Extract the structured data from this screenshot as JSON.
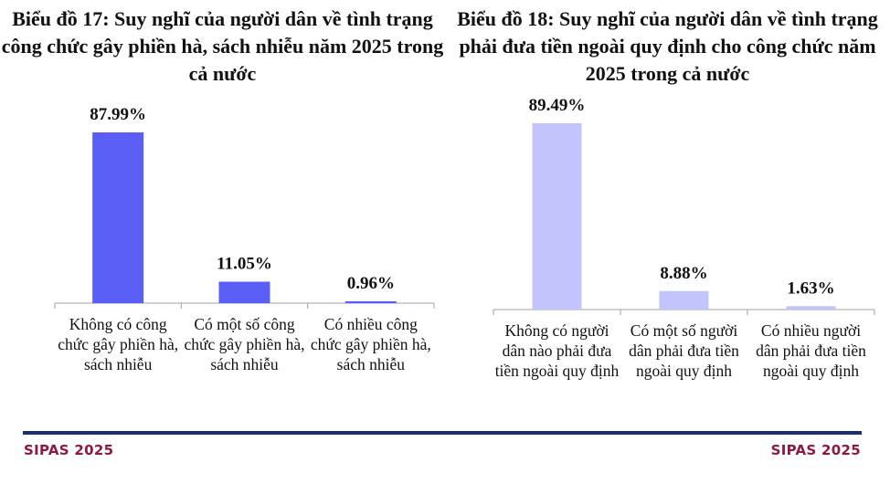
{
  "chart_data": [
    {
      "type": "bar",
      "title": "Biểu đồ 17: Suy nghĩ của người dân về tình trạng công chức gây phiền hà, sách nhiễu năm 2025 trong cả nước",
      "categories": [
        "Không có công chức gây phiền hà, sách nhiễu",
        "Có một số công chức gây phiền hà, sách nhiễu",
        "Có nhiều công chức gây phiền hà, sách nhiễu"
      ],
      "values": [
        87.99,
        11.05,
        0.96
      ],
      "value_labels": [
        "87.99%",
        "11.05%",
        "0.96%"
      ],
      "color": "#5b5ef5",
      "grid": false,
      "legend": "none"
    },
    {
      "type": "bar",
      "title": "Biểu đồ 18: Suy nghĩ của người dân về tình trạng phải đưa tiền ngoài quy định cho công chức năm 2025 trong cả nước",
      "categories": [
        "Không có người dân nào phải đưa tiền ngoài quy định",
        "Có một số người dân phải đưa tiền ngoài quy định",
        "Có nhiều người dân phải đưa tiền ngoài quy định"
      ],
      "values": [
        89.49,
        8.88,
        1.63
      ],
      "value_labels": [
        "89.49%",
        "8.88%",
        "1.63%"
      ],
      "color": "#c3c4fb",
      "grid": false,
      "legend": "none"
    }
  ],
  "footer": {
    "left_brand": "SIPAS 2025",
    "right_brand": "SIPAS 2025"
  }
}
